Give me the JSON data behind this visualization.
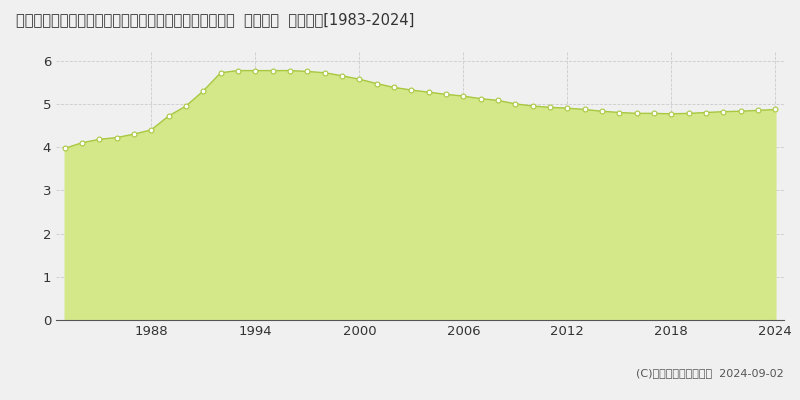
{
  "title": "栃木県下都賀郡壬生町大字安塚字西原２３８９番１１外  地価公示  地価推移[1983-2024]",
  "years": [
    1983,
    1984,
    1985,
    1986,
    1987,
    1988,
    1989,
    1990,
    1991,
    1992,
    1993,
    1994,
    1995,
    1996,
    1997,
    1998,
    1999,
    2000,
    2001,
    2002,
    2003,
    2004,
    2005,
    2006,
    2007,
    2008,
    2009,
    2010,
    2011,
    2012,
    2013,
    2014,
    2015,
    2016,
    2017,
    2018,
    2019,
    2020,
    2021,
    2022,
    2023,
    2024
  ],
  "values": [
    3.97,
    4.1,
    4.18,
    4.22,
    4.3,
    4.4,
    4.72,
    4.95,
    5.3,
    5.72,
    5.77,
    5.77,
    5.77,
    5.77,
    5.75,
    5.72,
    5.65,
    5.57,
    5.47,
    5.38,
    5.32,
    5.27,
    5.22,
    5.18,
    5.12,
    5.08,
    5.0,
    4.95,
    4.92,
    4.9,
    4.87,
    4.83,
    4.8,
    4.78,
    4.78,
    4.77,
    4.78,
    4.8,
    4.82,
    4.83,
    4.85,
    4.87
  ],
  "line_color": "#a8c840",
  "fill_color": "#d4e88a",
  "marker_color": "#ffffff",
  "marker_edge_color": "#a8c840",
  "background_color": "#f0f0f0",
  "plot_bg_color": "#f0f0f0",
  "grid_color": "#cccccc",
  "ylim": [
    0,
    6.2
  ],
  "yticks": [
    0,
    1,
    2,
    3,
    4,
    5,
    6
  ],
  "xticks": [
    1988,
    1994,
    2000,
    2006,
    2012,
    2018,
    2024
  ],
  "copyright_text": "(C)土地価格ドットコム  2024-09-02",
  "title_fontsize": 10.5,
  "axis_fontsize": 9.5
}
